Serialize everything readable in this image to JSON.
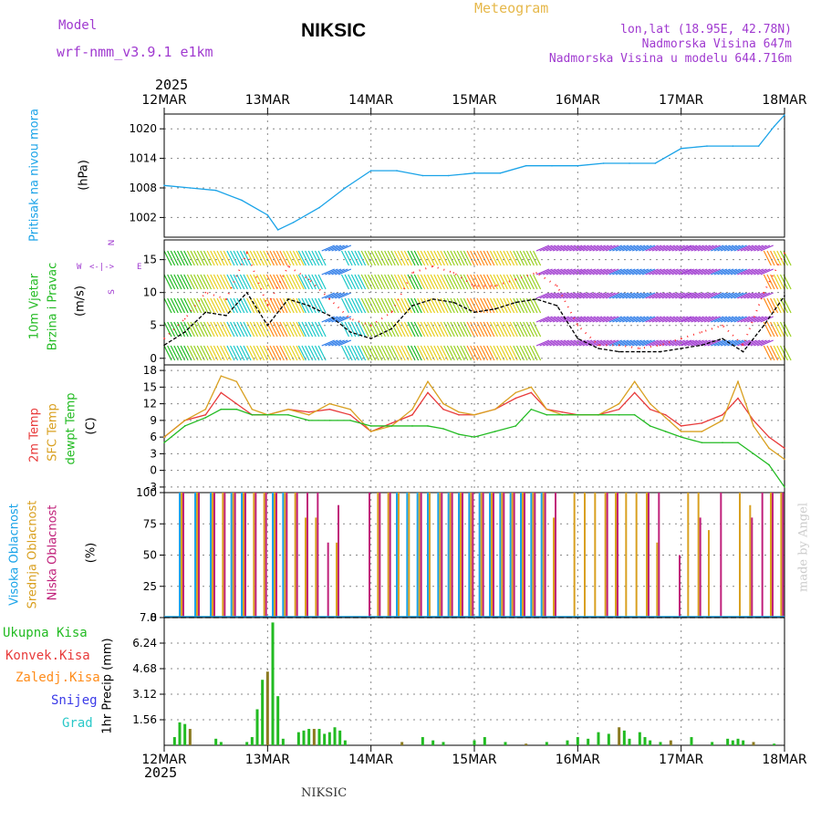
{
  "header": {
    "model_label": "Model",
    "model_name": "wrf-nmm_v3.9.1  e1km",
    "station": "NIKSIC",
    "meteogram": "Meteogram",
    "lonlat": "lon,lat (18.95E, 42.78N)",
    "elev": "Nadmorska Visina 647m",
    "elev_model": "Nadmorska Visina u modelu 644.716m",
    "year_top": "2025",
    "year_bottom": "2025",
    "footer_station": "NIKSIC",
    "credit": "made by Angel"
  },
  "colors": {
    "pressure": "#1aa3e8",
    "wind_speed": "#000000",
    "wind_gust": "#ff2a2a",
    "t2m": "#e83a3a",
    "tsfc": "#d9a020",
    "dewpt": "#22bb22",
    "high_cloud": "#1aa3e8",
    "mid_cloud": "#d9a020",
    "low_cloud": "#c0207a",
    "precip_total": "#22bb22",
    "precip_conv": "#e83a3a",
    "precip_frozen": "#ff8c1a",
    "snow": "#3a3ae8",
    "grad": "#2ac8c8",
    "purple": "#a03ad0"
  },
  "x_ticks": [
    "12MAR",
    "13MAR",
    "14MAR",
    "15MAR",
    "16MAR",
    "17MAR",
    "18MAR"
  ],
  "panels": {
    "pressure": {
      "labels": [
        "Pritisak na nivou mora"
      ],
      "unit": "(hPa)"
    },
    "wind": {
      "labels": [
        "10m Vjetar",
        "Brzina i Pravac"
      ],
      "unit": "(m/s)",
      "compass": {
        "n": "N",
        "s": "S",
        "e": "E",
        "w": "W"
      }
    },
    "temp": {
      "labels": [
        "2m Temp",
        "SFC Temp",
        "dewpt Temp"
      ],
      "unit": "(C)"
    },
    "cloud": {
      "labels": [
        "Visoka Oblacnost",
        "Srednja Oblacnost",
        "Niska Oblacnost"
      ],
      "unit": "(%)"
    },
    "precip": {
      "labels": [
        "Ukupna Kisa",
        "Konvek.Kisa",
        "Zaledj.Kisa",
        "Snijeg",
        "Grad"
      ],
      "unit": "1hr Precip (mm)"
    }
  },
  "chart_data": [
    {
      "type": "line",
      "name": "pressure",
      "ylim": [
        998,
        1023
      ],
      "yticks": [
        "1002",
        "1008",
        "1014",
        "1020"
      ],
      "x": [
        0,
        0.25,
        0.5,
        0.75,
        1.0,
        1.1,
        1.25,
        1.5,
        1.75,
        2.0,
        2.25,
        2.5,
        2.75,
        3.0,
        3.25,
        3.5,
        3.75,
        4.0,
        4.25,
        4.5,
        4.75,
        5.0,
        5.25,
        5.5,
        5.75,
        5.9,
        6.0
      ],
      "series": [
        {
          "values": [
            1008.5,
            1008,
            1007.5,
            1005.5,
            1002.5,
            999.5,
            1001,
            1004,
            1008,
            1011.5,
            1011.5,
            1010.5,
            1010.5,
            1011,
            1011,
            1012.5,
            1012.5,
            1012.5,
            1013,
            1013,
            1013,
            1016,
            1016.5,
            1016.5,
            1016.5,
            1020.5,
            1022.8
          ]
        }
      ]
    },
    {
      "type": "line",
      "name": "wind",
      "ylim": [
        -1,
        18
      ],
      "yticks": [
        "0",
        "5",
        "10",
        "15"
      ],
      "x": [
        0,
        0.2,
        0.4,
        0.6,
        0.8,
        1.0,
        1.2,
        1.4,
        1.6,
        1.8,
        2.0,
        2.2,
        2.4,
        2.6,
        2.8,
        3.0,
        3.2,
        3.4,
        3.6,
        3.8,
        4.0,
        4.2,
        4.4,
        4.6,
        4.8,
        5.0,
        5.2,
        5.4,
        5.6,
        5.8,
        6.0
      ],
      "series": [
        {
          "values": [
            2,
            4,
            7,
            6.5,
            10,
            5,
            9,
            8,
            6.5,
            4,
            3,
            4.5,
            8,
            9,
            8.5,
            7,
            7.5,
            8.5,
            9,
            8,
            3,
            1.5,
            1,
            1,
            1,
            1.5,
            2,
            3,
            1,
            5,
            9.5
          ]
        },
        {
          "values": [
            3,
            6,
            10,
            9,
            16,
            8,
            14,
            12,
            9,
            6,
            5,
            7,
            13,
            14,
            13,
            11,
            11,
            12,
            13,
            11,
            5,
            2,
            2,
            1.5,
            2,
            3,
            4,
            5,
            2,
            10,
            16
          ]
        }
      ]
    },
    {
      "type": "line",
      "name": "temperature",
      "ylim": [
        -4,
        19
      ],
      "yticks": [
        "-3",
        "0",
        "3",
        "6",
        "9",
        "12",
        "15",
        "18"
      ],
      "x": [
        0,
        0.2,
        0.4,
        0.55,
        0.7,
        0.85,
        1.0,
        1.2,
        1.4,
        1.6,
        1.8,
        2.0,
        2.2,
        2.4,
        2.55,
        2.7,
        2.85,
        3.0,
        3.2,
        3.4,
        3.55,
        3.7,
        3.85,
        4.0,
        4.2,
        4.4,
        4.55,
        4.7,
        4.85,
        5.0,
        5.2,
        5.4,
        5.55,
        5.7,
        5.85,
        6.0
      ],
      "series": [
        {
          "values": [
            6,
            9,
            10,
            14,
            12,
            10,
            10,
            11,
            10.5,
            11,
            10,
            7,
            8.5,
            10,
            14,
            11,
            10,
            10,
            11,
            13,
            14,
            11,
            10.5,
            10,
            10,
            11,
            14,
            11,
            10,
            8,
            8.5,
            10,
            13,
            9,
            6,
            4
          ]
        },
        {
          "values": [
            6,
            9,
            11,
            17,
            16,
            11,
            10,
            11,
            10,
            12,
            11,
            7,
            8,
            11,
            16,
            12,
            10.5,
            10,
            11,
            14,
            15,
            11,
            10,
            10,
            10,
            12,
            16,
            12,
            9.5,
            7,
            7,
            9,
            16,
            8,
            4,
            2
          ]
        },
        {
          "values": [
            5,
            8,
            9.5,
            11,
            11,
            10,
            10,
            10,
            9,
            9,
            9,
            8,
            8,
            8,
            8,
            7.5,
            6.5,
            6,
            7,
            8,
            11,
            10,
            10,
            10,
            10,
            10,
            10,
            8,
            7,
            6,
            5,
            5,
            5,
            3,
            1,
            -3
          ]
        }
      ]
    },
    {
      "type": "bar",
      "name": "cloud",
      "ylim": [
        0,
        100
      ],
      "yticks": [
        "0",
        "25",
        "50",
        "75",
        "100"
      ],
      "x": [
        0.15,
        0.3,
        0.45,
        0.55,
        0.65,
        0.75,
        0.85,
        0.95,
        1.05,
        1.15,
        1.25,
        1.35,
        1.45,
        1.55,
        1.65,
        1.75,
        1.85,
        1.95,
        2.05,
        2.15,
        2.25,
        2.35,
        2.45,
        2.55,
        2.65,
        2.75,
        2.85,
        2.95,
        3.05,
        3.15,
        3.25,
        3.35,
        3.45,
        3.55,
        3.65,
        3.75,
        3.85,
        3.95,
        4.05,
        4.15,
        4.25,
        4.35,
        4.45,
        4.55,
        4.65,
        4.75,
        4.85,
        4.95,
        5.05,
        5.15,
        5.25,
        5.35,
        5.45,
        5.55,
        5.65,
        5.75,
        5.85,
        5.95
      ],
      "series": [
        {
          "values": [
            100,
            100,
            100,
            0,
            100,
            100,
            0,
            0,
            100,
            100,
            0,
            0,
            0,
            0,
            0,
            0,
            0,
            0,
            0,
            0,
            100,
            100,
            100,
            100,
            100,
            100,
            100,
            100,
            100,
            100,
            100,
            100,
            100,
            100,
            100,
            0,
            0,
            0,
            0,
            0,
            0,
            0,
            0,
            0,
            0,
            0,
            0,
            0,
            0,
            0,
            0,
            0,
            0,
            0,
            0,
            0,
            0,
            0
          ]
        },
        {
          "values": [
            100,
            100,
            100,
            100,
            100,
            100,
            100,
            100,
            100,
            100,
            100,
            80,
            80,
            0,
            60,
            0,
            0,
            0,
            100,
            100,
            100,
            100,
            100,
            100,
            100,
            100,
            100,
            100,
            100,
            100,
            100,
            100,
            100,
            100,
            100,
            80,
            0,
            100,
            100,
            100,
            100,
            100,
            100,
            100,
            100,
            60,
            0,
            0,
            100,
            100,
            70,
            0,
            0,
            100,
            90,
            0,
            100,
            100
          ]
        },
        {
          "values": [
            100,
            100,
            100,
            100,
            100,
            100,
            100,
            100,
            100,
            100,
            100,
            100,
            100,
            60,
            90,
            0,
            0,
            100,
            100,
            100,
            0,
            0,
            100,
            0,
            100,
            100,
            100,
            100,
            100,
            100,
            100,
            100,
            100,
            100,
            100,
            100,
            0,
            0,
            0,
            0,
            100,
            100,
            0,
            0,
            100,
            100,
            0,
            50,
            0,
            80,
            0,
            100,
            0,
            0,
            80,
            100,
            100,
            100
          ]
        }
      ]
    },
    {
      "type": "bar",
      "name": "precip",
      "ylim": [
        0,
        7.8
      ],
      "yticks": [
        "1.56",
        "3.12",
        "4.68",
        "6.24",
        "7.8"
      ],
      "x": [
        0.1,
        0.15,
        0.2,
        0.25,
        0.5,
        0.55,
        0.8,
        0.85,
        0.9,
        0.95,
        1.0,
        1.05,
        1.1,
        1.15,
        1.3,
        1.35,
        1.4,
        1.45,
        1.5,
        1.55,
        1.6,
        1.65,
        1.7,
        1.75,
        2.3,
        2.5,
        2.6,
        2.7,
        3.0,
        3.1,
        3.3,
        3.5,
        3.7,
        3.9,
        4.0,
        4.1,
        4.2,
        4.3,
        4.4,
        4.45,
        4.5,
        4.6,
        4.65,
        4.7,
        4.8,
        4.9,
        5.1,
        5.3,
        5.45,
        5.5,
        5.55,
        5.6,
        5.7,
        5.9
      ],
      "series": [
        {
          "values": [
            0.5,
            1.4,
            1.3,
            1.0,
            0.4,
            0.2,
            0.2,
            0.5,
            2.2,
            4.0,
            4.5,
            7.5,
            3.0,
            0.4,
            0.8,
            0.9,
            1.0,
            1.0,
            1.0,
            0.7,
            0.8,
            1.1,
            0.9,
            0.3,
            0.2,
            0.5,
            0.3,
            0.2,
            0.3,
            0.5,
            0.2,
            0.1,
            0.2,
            0.3,
            0.5,
            0.4,
            0.8,
            0.7,
            1.1,
            0.9,
            0.4,
            0.8,
            0.5,
            0.3,
            0.2,
            0.3,
            0.5,
            0.2,
            0.4,
            0.3,
            0.4,
            0.3,
            0.2,
            0.1
          ]
        }
      ]
    }
  ]
}
